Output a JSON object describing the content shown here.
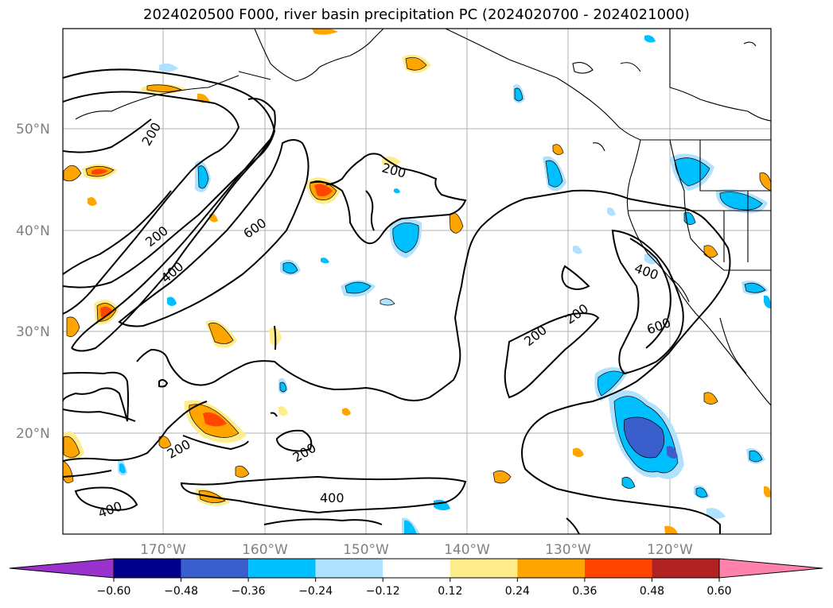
{
  "title": "2024020500 F000, river basin precipitation PC (2024020700 - 2024021000)",
  "map": {
    "lat_labels": [
      "50°N",
      "40°N",
      "30°N",
      "20°N"
    ],
    "lon_labels": [
      "170°W",
      "160°W",
      "150°W",
      "140°W",
      "130°W",
      "120°W"
    ],
    "contour_labels": [
      "200",
      "200",
      "200",
      "200",
      "200",
      "200",
      "200",
      "400",
      "400",
      "400",
      "600",
      "600"
    ]
  },
  "colorbar": {
    "ticks": [
      "−0.60",
      "−0.48",
      "−0.36",
      "−0.24",
      "−0.12",
      "0.12",
      "0.24",
      "0.36",
      "0.48",
      "0.60"
    ],
    "colors": [
      "#9932cc",
      "#00008b",
      "#3a5fcd",
      "#00bfff",
      "#b0e2ff",
      "#ffffff",
      "#ffec8b",
      "#ffa500",
      "#ff4500",
      "#b22222",
      "#ff82ab"
    ]
  }
}
